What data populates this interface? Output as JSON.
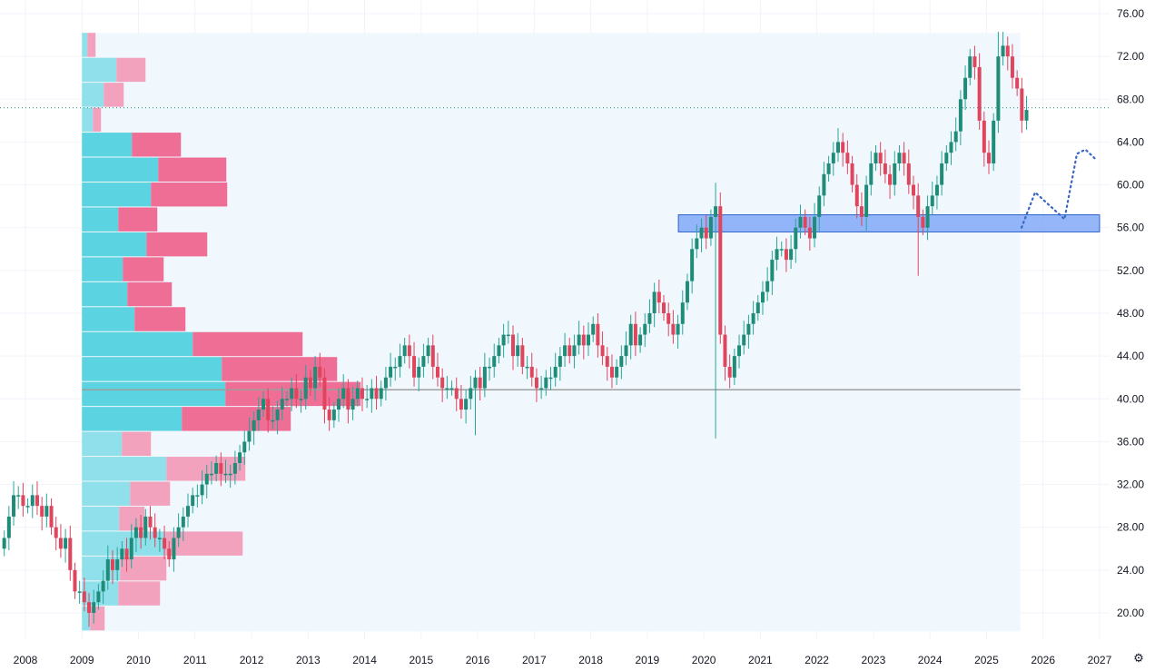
{
  "chart_data": {
    "type": "candlestick",
    "title": "",
    "start_month": "2007-08",
    "closes": [
      27,
      29,
      31,
      31,
      30,
      30,
      31,
      30,
      29,
      30,
      28,
      27,
      26,
      27,
      24,
      22,
      22,
      21,
      20,
      21,
      22,
      23,
      25,
      24,
      25,
      26,
      25,
      27,
      28,
      27,
      29,
      28,
      27,
      27,
      26,
      25,
      27,
      28,
      29,
      30,
      31,
      31,
      32,
      33,
      33,
      34,
      33,
      33,
      33,
      34,
      35,
      36,
      37,
      38,
      39,
      40,
      38,
      38,
      39,
      40,
      40,
      41,
      40,
      40,
      42,
      41,
      43,
      42,
      39,
      38,
      39,
      40,
      41,
      39,
      40,
      41,
      40,
      40,
      41,
      40,
      41,
      42,
      43,
      43,
      44,
      45,
      44,
      42,
      43,
      44,
      45,
      43,
      42,
      41,
      41,
      41,
      40,
      39,
      40,
      41,
      42,
      41,
      43,
      43,
      44,
      45,
      46,
      46,
      44,
      45,
      43,
      43,
      42,
      41,
      41,
      42,
      42,
      43,
      44,
      45,
      44,
      45,
      46,
      45,
      46,
      47,
      45,
      44,
      43,
      42,
      43,
      44,
      45,
      47,
      45,
      46,
      47,
      48,
      50,
      49,
      48,
      47,
      46,
      47,
      49,
      51,
      54,
      55,
      56,
      55,
      57,
      58,
      46,
      43,
      42,
      44,
      45,
      46,
      47,
      48,
      49,
      50,
      51,
      53,
      54,
      54,
      53,
      54,
      56,
      57,
      56,
      55,
      57,
      59,
      61,
      62,
      63,
      64,
      63,
      62,
      60,
      58,
      57,
      60,
      62,
      63,
      62,
      61,
      60,
      62,
      63,
      62,
      60,
      59,
      57,
      56,
      58,
      59,
      60,
      62,
      63,
      64,
      65,
      68,
      70,
      72,
      71,
      66,
      63,
      62,
      66,
      72,
      73,
      72,
      70,
      69,
      66,
      67
    ],
    "first_open": 26,
    "wick_extremes": {
      "2020-03": {
        "low": 36.3,
        "high": 60.2
      },
      "2023-10": {
        "low": 51.5
      },
      "2025-03": {
        "high": 74.3
      },
      "2015-12": {
        "low": 36.6
      }
    },
    "last_price": 67.2,
    "y_axis": {
      "ticks": [
        "76.00",
        "72.00",
        "68.00",
        "64.00",
        "60.00",
        "56.00",
        "52.00",
        "48.00",
        "44.00",
        "40.00",
        "36.00",
        "32.00",
        "28.00",
        "24.00",
        "20.00"
      ],
      "range": [
        18.5,
        77.3
      ]
    },
    "x_axis": {
      "ticks": [
        "2008",
        "2009",
        "2010",
        "2011",
        "2012",
        "2013",
        "2014",
        "2015",
        "2016",
        "2017",
        "2018",
        "2019",
        "2020",
        "2021",
        "2022",
        "2023",
        "2024",
        "2025",
        "2026",
        "2027"
      ]
    },
    "volume_profile": {
      "range_years": [
        2009.0,
        2025.6
      ],
      "price_top": 74.2,
      "row_size": 2.33,
      "poc_price": 40.85,
      "value_area_rows": [
        4,
        15
      ],
      "buy": [
        6,
        38,
        24,
        12,
        55,
        84,
        76,
        40,
        71,
        45,
        50,
        58,
        122,
        154,
        158,
        110,
        44,
        93,
        53,
        41,
        92,
        42,
        40,
        9
      ],
      "sell": [
        9,
        32,
        22,
        9,
        54,
        75,
        84,
        43,
        67,
        45,
        49,
        56,
        121,
        127,
        149,
        120,
        32,
        87,
        44,
        28,
        85,
        51,
        46,
        16
      ]
    },
    "support_zone": {
      "low": 55.6,
      "high": 57.2,
      "from": 2019.55,
      "to": 2027.0
    },
    "projection": [
      [
        2025.62,
        56.0
      ],
      [
        2025.86,
        59.3
      ],
      [
        2026.38,
        56.8
      ],
      [
        2026.6,
        62.9
      ],
      [
        2026.75,
        63.3
      ],
      [
        2026.95,
        62.3
      ]
    ],
    "colors": {
      "up": "#26a69a",
      "upBody": "#1e8c78",
      "down": "#e0455e",
      "buy": "#5cd3e0",
      "buyLight": "#8fe0ea",
      "sell": "#ef6e96",
      "sellLight": "#f3a2bd",
      "zone": "#7aa4f7",
      "zoneBorder": "#2d62c8",
      "projection": "#3b66c4",
      "profileBg": "#f1f8fd",
      "poc": "#9e9e9e",
      "priceLine": "#1e8c78"
    }
  },
  "settings_icon": "gear-icon"
}
